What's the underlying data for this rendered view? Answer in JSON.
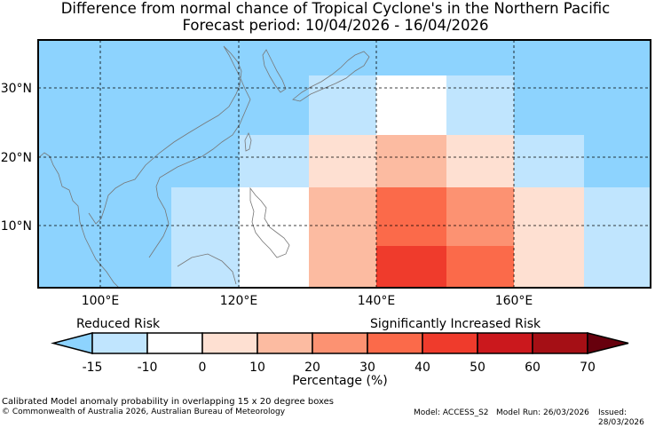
{
  "title": {
    "line1": "Difference from normal chance of Tropical Cyclone's in the Northern Pacific",
    "line2": "Forecast period: 10/04/2026 - 16/04/2026"
  },
  "map": {
    "lon_range": [
      91,
      179
    ],
    "lat_range": [
      1,
      37
    ],
    "lon_ticks": [
      "100°E",
      "120°E",
      "140°E",
      "160°E"
    ],
    "lat_ticks": [
      "30°N",
      "20°N",
      "10°N"
    ],
    "ocean_color": "#8dd3fe",
    "grid_cells": [
      {
        "lon": [
          110,
          120
        ],
        "lat": [
          1,
          16
        ],
        "pct": "-10 to -5"
      },
      {
        "lon": [
          120,
          130
        ],
        "lat": [
          1,
          16
        ],
        "pct": "-5 to 0"
      },
      {
        "lon": [
          130,
          140
        ],
        "lat": [
          1,
          16
        ],
        "pct": "10 to 20"
      },
      {
        "lon": [
          140,
          150
        ],
        "lat": [
          7,
          16
        ],
        "pct": "30 to 40"
      },
      {
        "lon": [
          140,
          150
        ],
        "lat": [
          1,
          7
        ],
        "pct": "40 to 50"
      },
      {
        "lon": [
          150,
          160
        ],
        "lat": [
          7,
          16
        ],
        "pct": "20 to 30"
      },
      {
        "lon": [
          150,
          160
        ],
        "lat": [
          1,
          7
        ],
        "pct": "30 to 40"
      },
      {
        "lon": [
          160,
          170
        ],
        "lat": [
          1,
          16
        ],
        "pct": "0 to 10"
      },
      {
        "lon": [
          170,
          180
        ],
        "lat": [
          1,
          16
        ],
        "pct": "-10 to -5"
      },
      {
        "lon": [
          120,
          130
        ],
        "lat": [
          16,
          24
        ],
        "pct": "-10 to -5"
      },
      {
        "lon": [
          130,
          140
        ],
        "lat": [
          16,
          24
        ],
        "pct": "0 to 10"
      },
      {
        "lon": [
          140,
          150
        ],
        "lat": [
          16,
          24
        ],
        "pct": "10 to 20"
      },
      {
        "lon": [
          150,
          160
        ],
        "lat": [
          16,
          24
        ],
        "pct": "0 to 10"
      },
      {
        "lon": [
          160,
          170
        ],
        "lat": [
          16,
          24
        ],
        "pct": "-10 to -5"
      },
      {
        "lon": [
          130,
          140
        ],
        "lat": [
          24,
          32
        ],
        "pct": "-10 to -5"
      },
      {
        "lon": [
          140,
          150
        ],
        "lat": [
          24,
          32
        ],
        "pct": "-5 to 0"
      },
      {
        "lon": [
          150,
          160
        ],
        "lat": [
          24,
          32
        ],
        "pct": "-10 to -5"
      }
    ]
  },
  "colorbar": {
    "reduced_label": "Reduced Risk",
    "increased_label": "Significantly Increased Risk",
    "ticks": [
      "-15",
      "-10",
      "0",
      "10",
      "20",
      "30",
      "40",
      "50",
      "60",
      "70"
    ],
    "colors": [
      "#8dd3fe",
      "#c0e5fe",
      "#ffffff",
      "#fee0d2",
      "#fcbba1",
      "#fc9272",
      "#fb6a4a",
      "#ef3b2c",
      "#cb181d",
      "#a50f15",
      "#67000d"
    ],
    "label": "Percentage (%)"
  },
  "footer": {
    "line1": "Calibrated Model anomaly probability in overlapping 15 x 20 degree boxes",
    "line2": "© Commonwealth of Australia 2026, Australian Bureau of Meteorology",
    "model": "Model: ACCESS_S2",
    "model_run": "Model Run: 26/03/2026",
    "issued": "Issued: 28/03/2026"
  }
}
